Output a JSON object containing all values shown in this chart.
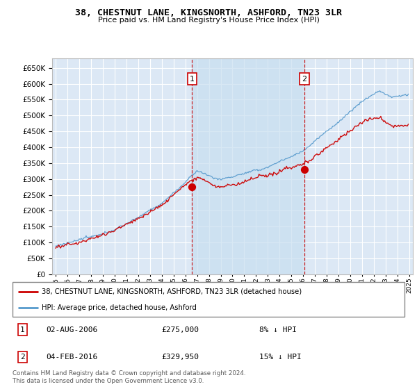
{
  "title": "38, CHESTNUT LANE, KINGSNORTH, ASHFORD, TN23 3LR",
  "subtitle": "Price paid vs. HM Land Registry's House Price Index (HPI)",
  "ylim": [
    0,
    680000
  ],
  "yticks": [
    0,
    50000,
    100000,
    150000,
    200000,
    250000,
    300000,
    350000,
    400000,
    450000,
    500000,
    550000,
    600000,
    650000
  ],
  "background_color": "#ffffff",
  "plot_bg_color": "#dce8f5",
  "grid_color": "#ffffff",
  "shade_color": "#c8dff0",
  "legend_label_red": "38, CHESTNUT LANE, KINGSNORTH, ASHFORD, TN23 3LR (detached house)",
  "legend_label_blue": "HPI: Average price, detached house, Ashford",
  "transaction1_date": "02-AUG-2006",
  "transaction1_price": "£275,000",
  "transaction1_pct": "8% ↓ HPI",
  "transaction2_date": "04-FEB-2016",
  "transaction2_price": "£329,950",
  "transaction2_pct": "15% ↓ HPI",
  "footnote": "Contains HM Land Registry data © Crown copyright and database right 2024.\nThis data is licensed under the Open Government Licence v3.0.",
  "red_color": "#cc0000",
  "blue_color": "#5599cc",
  "marker1_year": 2006.58,
  "marker1_value": 275000,
  "marker2_year": 2016.08,
  "marker2_value": 329950,
  "xstart": 1995,
  "xend": 2025
}
